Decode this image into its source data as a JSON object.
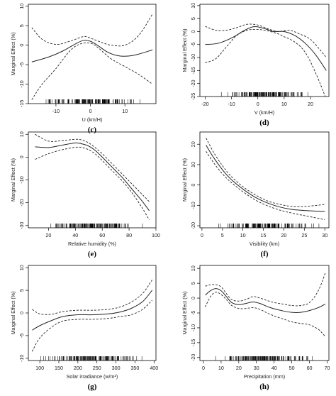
{
  "chart_data": [
    {
      "panel": "(c)",
      "type": "line",
      "xlabel": "U (km/H)",
      "ylabel": "Marginal Effect (%)",
      "xlim": [
        -18,
        19
      ],
      "ylim": [
        -15,
        10.5
      ],
      "xticks": [
        -10,
        0,
        10
      ],
      "yticks": [
        -15,
        -10,
        -5,
        0,
        5,
        10
      ],
      "series": [
        {
          "role": "estimate",
          "style": "solid",
          "x": [
            -17,
            -12,
            -8,
            -4,
            -2,
            0,
            2,
            5,
            8,
            11,
            14,
            18
          ],
          "y": [
            -4.3,
            -3,
            -1.5,
            0.5,
            1.2,
            1,
            0,
            -1.8,
            -2.7,
            -2.8,
            -2.3,
            -1.2
          ]
        },
        {
          "role": "upper",
          "style": "dashed",
          "x": [
            -17,
            -14,
            -10,
            -6,
            -2,
            0,
            3,
            6,
            10,
            14,
            18
          ],
          "y": [
            4.5,
            1.5,
            0.2,
            1,
            2.2,
            1.8,
            0.8,
            0,
            0,
            2.5,
            8
          ]
        },
        {
          "role": "lower",
          "style": "dashed",
          "x": [
            -17,
            -14,
            -10,
            -6,
            -3,
            0,
            2,
            6,
            10,
            14,
            18
          ],
          "y": [
            -14,
            -10,
            -6,
            -1.5,
            0.3,
            0.5,
            -0.5,
            -3.5,
            -5.5,
            -7.5,
            -10
          ]
        }
      ]
    },
    {
      "panel": "(d)",
      "type": "line",
      "xlabel": "V (km/H)",
      "ylabel": "Marginal Effect (%)",
      "xlim": [
        -22,
        27
      ],
      "ylim": [
        -25,
        10.5
      ],
      "xticks": [
        -20,
        -10,
        0,
        10,
        20
      ],
      "yticks": [
        -25,
        -20,
        -15,
        -10,
        -5,
        0,
        5,
        10
      ],
      "series": [
        {
          "role": "estimate",
          "style": "solid",
          "x": [
            -20,
            -15,
            -10,
            -5,
            -2,
            0,
            3,
            6,
            10,
            14,
            18,
            22,
            26
          ],
          "y": [
            -5,
            -4.5,
            -2.5,
            0.5,
            1.8,
            1.8,
            1,
            0,
            0,
            -1.5,
            -4.5,
            -9,
            -15
          ]
        },
        {
          "role": "upper",
          "style": "dashed",
          "x": [
            -20,
            -16,
            -12,
            -8,
            -4,
            0,
            4,
            8,
            12,
            16,
            20,
            24,
            26
          ],
          "y": [
            2,
            0.5,
            0.5,
            1.5,
            2.8,
            2.5,
            1,
            0,
            0.5,
            -1,
            -3,
            -7.5,
            -10
          ]
        },
        {
          "role": "lower",
          "style": "dashed",
          "x": [
            -20,
            -16,
            -12,
            -8,
            -4,
            0,
            4,
            8,
            10,
            14,
            18,
            22,
            26
          ],
          "y": [
            -12,
            -10.5,
            -6,
            -1.5,
            0.5,
            0.8,
            0.2,
            -1,
            -2,
            -4,
            -8,
            -16,
            -26
          ]
        }
      ]
    },
    {
      "panel": "(e)",
      "type": "line",
      "xlabel": "Relative humidity (%)",
      "ylabel": "Marginal Effect (%)",
      "xlim": [
        5,
        100
      ],
      "ylim": [
        -31,
        11
      ],
      "xticks": [
        20,
        40,
        60,
        80,
        100
      ],
      "yticks": [
        -30,
        -20,
        -10,
        0,
        10
      ],
      "series": [
        {
          "role": "estimate",
          "style": "solid",
          "x": [
            10,
            20,
            30,
            40,
            45,
            50,
            55,
            60,
            65,
            70,
            75,
            80,
            85,
            90,
            95
          ],
          "y": [
            4.5,
            4.2,
            5.2,
            6.2,
            5.8,
            4.8,
            2.8,
            0,
            -3,
            -6,
            -9,
            -12.5,
            -16,
            -19.5,
            -23.5
          ]
        },
        {
          "role": "upper",
          "style": "dashed",
          "x": [
            10,
            20,
            30,
            40,
            45,
            50,
            55,
            60,
            65,
            70,
            75,
            80,
            85,
            90,
            95
          ],
          "y": [
            10,
            7,
            7.2,
            7.8,
            7.5,
            6.2,
            4,
            1.5,
            -1.5,
            -4.5,
            -7.5,
            -10.5,
            -13.5,
            -16.5,
            -19.5
          ]
        },
        {
          "role": "lower",
          "style": "dashed",
          "x": [
            10,
            20,
            30,
            40,
            45,
            50,
            55,
            60,
            65,
            70,
            75,
            80,
            85,
            90,
            95
          ],
          "y": [
            -1,
            1.5,
            3.2,
            4.3,
            4.2,
            3.2,
            1.3,
            -1.5,
            -4.5,
            -7.5,
            -10.5,
            -14,
            -18,
            -22.5,
            -27.5
          ]
        }
      ]
    },
    {
      "panel": "(f)",
      "type": "line",
      "xlabel": "Visibility (km)",
      "ylabel": "Marginal Effect (%)",
      "xlim": [
        -0.5,
        31
      ],
      "ylim": [
        -21,
        26
      ],
      "xticks": [
        0,
        5,
        10,
        15,
        20,
        25,
        30
      ],
      "yticks": [
        -20,
        -10,
        0,
        10,
        20
      ],
      "series": [
        {
          "role": "estimate",
          "style": "solid",
          "x": [
            1,
            3,
            5,
            7,
            10,
            13,
            16,
            19,
            22,
            25,
            28,
            30
          ],
          "y": [
            19.5,
            13,
            7.5,
            3,
            -2,
            -6,
            -8.8,
            -10.8,
            -12,
            -12.5,
            -12.8,
            -13
          ]
        },
        {
          "role": "upper",
          "style": "dashed",
          "x": [
            1,
            3,
            5,
            7,
            10,
            13,
            16,
            19,
            22,
            25,
            28,
            30
          ],
          "y": [
            23,
            15.5,
            9.5,
            4.5,
            -0.8,
            -4.8,
            -7.8,
            -9.5,
            -10.5,
            -10.5,
            -10,
            -9.5
          ]
        },
        {
          "role": "lower",
          "style": "dashed",
          "x": [
            1,
            3,
            5,
            7,
            10,
            13,
            16,
            19,
            22,
            25,
            28,
            30
          ],
          "y": [
            16.5,
            10.5,
            5.5,
            1.5,
            -3.3,
            -7.3,
            -10.2,
            -12.3,
            -13.8,
            -15,
            -16.2,
            -17
          ]
        }
      ]
    },
    {
      "panel": "(g)",
      "type": "line",
      "xlabel": "Solar irradiance (w/m²)",
      "ylabel": "Marginal Effect (%)",
      "xlim": [
        70,
        405
      ],
      "ylim": [
        -10.5,
        10.5
      ],
      "xticks": [
        100,
        150,
        200,
        250,
        300,
        350,
        400
      ],
      "yticks": [
        -10,
        -5,
        0,
        5,
        10
      ],
      "series": [
        {
          "role": "estimate",
          "style": "solid",
          "x": [
            80,
            100,
            130,
            160,
            200,
            240,
            280,
            310,
            340,
            370,
            395
          ],
          "y": [
            -3.8,
            -2.8,
            -1.7,
            -0.8,
            -0.4,
            -0.4,
            -0.2,
            0.2,
            1,
            2.5,
            5
          ]
        },
        {
          "role": "upper",
          "style": "dashed",
          "x": [
            80,
            100,
            130,
            160,
            200,
            240,
            280,
            310,
            340,
            370,
            395
          ],
          "y": [
            0.8,
            -0.2,
            -0.3,
            0.3,
            0.6,
            0.6,
            0.8,
            1.3,
            2.4,
            4.3,
            7.3
          ]
        },
        {
          "role": "lower",
          "style": "dashed",
          "x": [
            80,
            100,
            130,
            160,
            200,
            240,
            280,
            310,
            340,
            370,
            395
          ],
          "y": [
            -8.5,
            -5.5,
            -3.2,
            -1.8,
            -1.4,
            -1.4,
            -1.2,
            -0.8,
            -0.4,
            0.8,
            2.8
          ]
        }
      ]
    },
    {
      "panel": "(h)",
      "type": "line",
      "xlabel": "Precipitation (mm)",
      "ylabel": "Marginal Effect (%)",
      "xlim": [
        -2,
        71
      ],
      "ylim": [
        -21,
        11
      ],
      "xticks": [
        0,
        10,
        20,
        30,
        40,
        50,
        60,
        70
      ],
      "yticks": [
        -20,
        -15,
        -10,
        -5,
        0,
        5,
        10
      ],
      "series": [
        {
          "role": "estimate",
          "style": "solid",
          "x": [
            1,
            4,
            7,
            10,
            13,
            16,
            20,
            24,
            28,
            32,
            36,
            40,
            45,
            50,
            55,
            60,
            65,
            69
          ],
          "y": [
            1,
            2.5,
            3.2,
            2.5,
            0.5,
            -1.5,
            -2.2,
            -1.8,
            -1.3,
            -1.8,
            -2.8,
            -3.6,
            -4.3,
            -4.8,
            -4.8,
            -4.2,
            -3.2,
            -2
          ]
        },
        {
          "role": "upper",
          "style": "dashed",
          "x": [
            1,
            4,
            7,
            10,
            13,
            16,
            20,
            24,
            28,
            32,
            36,
            40,
            45,
            50,
            55,
            60,
            65,
            69
          ],
          "y": [
            4,
            4.5,
            4.5,
            3.8,
            1.5,
            -0.5,
            -1,
            -0.5,
            0.5,
            0,
            -0.8,
            -1.5,
            -2,
            -2.5,
            -2.5,
            -1.5,
            2.5,
            8.5
          ]
        },
        {
          "role": "lower",
          "style": "dashed",
          "x": [
            1,
            4,
            7,
            10,
            13,
            16,
            20,
            24,
            28,
            32,
            36,
            40,
            45,
            50,
            55,
            60,
            65,
            69
          ],
          "y": [
            -3,
            0.5,
            2,
            1.2,
            -0.5,
            -2.5,
            -3.5,
            -3.5,
            -3.2,
            -3.8,
            -5,
            -6,
            -7,
            -8,
            -8.5,
            -9,
            -10.5,
            -13
          ]
        }
      ]
    }
  ]
}
